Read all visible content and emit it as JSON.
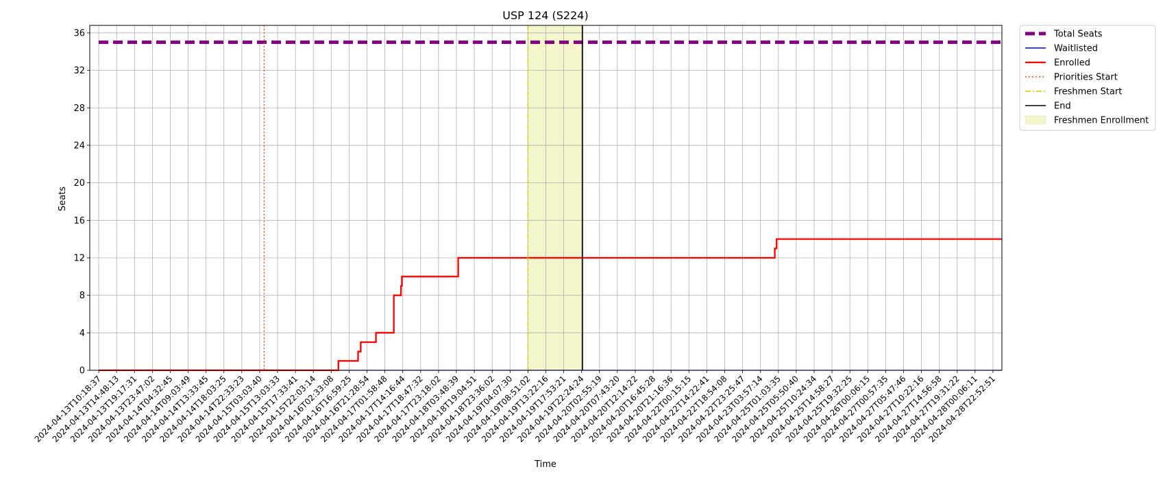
{
  "chart_data": {
    "type": "line",
    "title": "USP 124 (S224)",
    "xlabel": "Time",
    "ylabel": "Seats",
    "ylim": [
      0,
      36.8
    ],
    "yticks": [
      0,
      4,
      8,
      12,
      16,
      20,
      24,
      28,
      32,
      36
    ],
    "grid": true,
    "legend_position": "outside-top-right",
    "x_categories": [
      "2024-04-13T10:18:37",
      "2024-04-13T14:48:13",
      "2024-04-13T19:17:31",
      "2024-04-13T23:47:02",
      "2024-04-14T04:32:45",
      "2024-04-14T09:03:49",
      "2024-04-14T13:33:45",
      "2024-04-14T18:03:25",
      "2024-04-14T22:33:23",
      "2024-04-15T03:03:40",
      "2024-04-15T13:03:33",
      "2024-04-15T17:33:41",
      "2024-04-15T22:03:14",
      "2024-04-16T02:33:08",
      "2024-04-16T16:59:25",
      "2024-04-16T21:28:54",
      "2024-04-17T01:58:48",
      "2024-04-17T14:16:44",
      "2024-04-17T18:47:32",
      "2024-04-17T23:18:02",
      "2024-04-18T03:48:39",
      "2024-04-18T19:04:51",
      "2024-04-18T23:36:02",
      "2024-04-19T04:07:30",
      "2024-04-19T08:51:02",
      "2024-04-19T13:22:16",
      "2024-04-19T17:53:21",
      "2024-04-19T22:24:24",
      "2024-04-20T02:55:19",
      "2024-04-20T07:43:20",
      "2024-04-20T12:14:22",
      "2024-04-20T16:45:28",
      "2024-04-20T21:16:36",
      "2024-04-22T00:15:15",
      "2024-04-22T14:22:41",
      "2024-04-22T18:54:08",
      "2024-04-22T23:25:47",
      "2024-04-23T03:57:14",
      "2024-04-25T01:03:35",
      "2024-04-25T05:50:40",
      "2024-04-25T10:24:34",
      "2024-04-25T14:58:27",
      "2024-04-25T19:32:25",
      "2024-04-26T00:06:15",
      "2024-04-27T00:57:35",
      "2024-04-27T05:47:46",
      "2024-04-27T10:22:16",
      "2024-04-27T14:56:58",
      "2024-04-27T19:31:22",
      "2024-04-28T00:06:11",
      "2024-04-28T22:52:51"
    ],
    "series": [
      {
        "name": "Total Seats",
        "style": "dashed",
        "color": "#800080",
        "values": [
          [
            0,
            35
          ],
          [
            50.5,
            35
          ]
        ]
      },
      {
        "name": "Waitlisted",
        "style": "solid",
        "color": "#0000ff",
        "values": [
          [
            0,
            0
          ],
          [
            50.5,
            0
          ]
        ]
      },
      {
        "name": "Enrolled",
        "style": "solid",
        "color": "#ff0000",
        "values": [
          [
            0,
            0
          ],
          [
            13.4,
            0
          ],
          [
            13.4,
            1
          ],
          [
            14.5,
            1
          ],
          [
            14.5,
            2
          ],
          [
            14.65,
            2
          ],
          [
            14.65,
            3
          ],
          [
            15.5,
            3
          ],
          [
            15.5,
            4
          ],
          [
            16.5,
            4
          ],
          [
            16.5,
            8
          ],
          [
            16.9,
            8
          ],
          [
            16.9,
            9
          ],
          [
            16.95,
            9
          ],
          [
            16.95,
            10
          ],
          [
            20.1,
            10
          ],
          [
            20.1,
            12
          ],
          [
            37.8,
            12
          ],
          [
            37.8,
            13
          ],
          [
            37.9,
            13
          ],
          [
            37.9,
            14
          ],
          [
            50.5,
            14
          ]
        ]
      }
    ],
    "markers": [
      {
        "name": "Priorities Start",
        "x": 9.25,
        "style": "dotted",
        "color": "#ff4500"
      },
      {
        "name": "Freshmen Start",
        "x": 24.0,
        "style": "dashdot",
        "color": "#cccc00"
      },
      {
        "name": "End",
        "x": 27.05,
        "style": "solid",
        "color": "#000000"
      }
    ],
    "spans": [
      {
        "name": "Freshmen Enrollment",
        "x_start": 24.0,
        "x_end": 27.05,
        "color": "#f5f5cc"
      }
    ],
    "legend": [
      {
        "label": "Total Seats",
        "kind": "line",
        "style": "dashed",
        "color": "#800080"
      },
      {
        "label": "Waitlisted",
        "kind": "line",
        "style": "solid",
        "color": "#0000ff"
      },
      {
        "label": "Enrolled",
        "kind": "line",
        "style": "solid",
        "color": "#ff0000"
      },
      {
        "label": "Priorities Start",
        "kind": "line",
        "style": "dotted",
        "color": "#ff4500"
      },
      {
        "label": "Freshmen Start",
        "kind": "line",
        "style": "dashdot",
        "color": "#cccc00"
      },
      {
        "label": "End",
        "kind": "line",
        "style": "solid",
        "color": "#000000"
      },
      {
        "label": "Freshmen Enrollment",
        "kind": "patch",
        "style": "fill",
        "color": "#f5f5cc"
      }
    ]
  }
}
